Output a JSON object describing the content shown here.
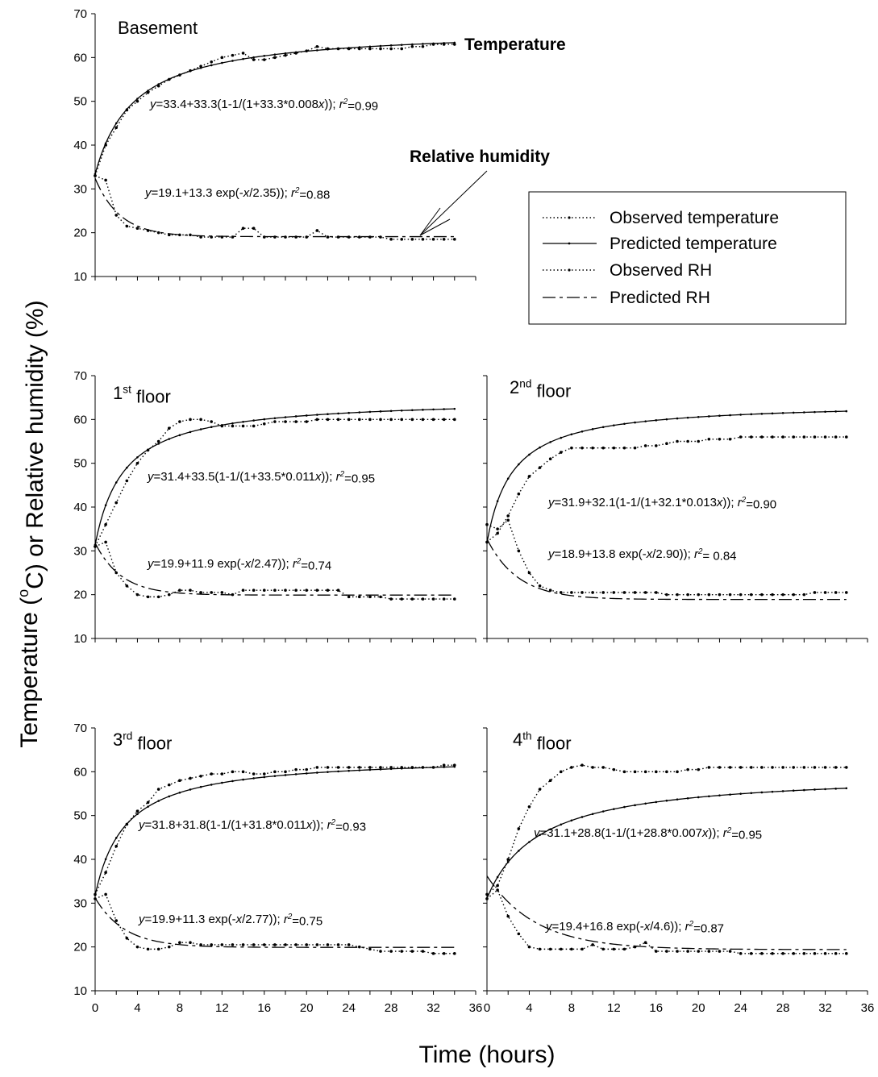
{
  "figure": {
    "ylabel": "Temperature (oC) or Relative humidity (%)",
    "xlabel": "Time (hours)",
    "legend": {
      "placement": "right of Basement panel",
      "items": [
        "Observed temperature",
        "Predicted temperature",
        "Observed RH",
        "Predicted RH"
      ]
    }
  },
  "chart_data": [
    {
      "type": "line",
      "panel": "Basement",
      "title": "Basement",
      "xlim": [
        0,
        36
      ],
      "ylim": [
        10,
        70
      ],
      "yticks": [
        10,
        20,
        30,
        40,
        50,
        60,
        70
      ],
      "xticks": [],
      "labels": {
        "temperature": "Temperature",
        "rh": "Relative humidity"
      },
      "equations": {
        "temperature": "y=33.4+33.3(1-1/(1+33.3*0.008x)); r2=0.99",
        "rh": "y=19.1+13.3 exp(-x/2.35)); r2=0.88"
      },
      "model": {
        "t_a": 33.4,
        "t_b": 33.3,
        "t_k": 0.008,
        "rh_a": 19.1,
        "rh_b": 13.3,
        "rh_tau": 2.35
      },
      "series": [
        {
          "name": "Observed temperature",
          "x": [
            0,
            1,
            2,
            3,
            4,
            5,
            6,
            7,
            8,
            9,
            10,
            11,
            12,
            13,
            14,
            15,
            16,
            17,
            18,
            19,
            20,
            21,
            22,
            23,
            24,
            25,
            26,
            27,
            28,
            29,
            30,
            31,
            32,
            33,
            34
          ],
          "values": [
            33,
            40,
            44,
            48,
            50,
            52,
            53.5,
            55,
            56,
            57,
            58,
            59,
            60,
            60.5,
            61,
            59.5,
            59.5,
            60,
            60.5,
            61,
            61.5,
            62.5,
            62,
            62,
            62,
            62,
            62,
            62,
            62,
            62,
            62.5,
            62.5,
            63,
            63,
            63
          ]
        },
        {
          "name": "Observed RH",
          "x": [
            0,
            1,
            2,
            3,
            4,
            5,
            6,
            7,
            8,
            9,
            10,
            11,
            12,
            13,
            14,
            15,
            16,
            17,
            18,
            19,
            20,
            21,
            22,
            23,
            24,
            25,
            26,
            27,
            28,
            29,
            30,
            31,
            32,
            33,
            34
          ],
          "values": [
            33,
            32,
            24,
            21.5,
            21,
            20.5,
            20,
            19.5,
            19.5,
            19.5,
            19,
            19,
            19,
            19,
            21,
            21,
            19,
            19,
            19,
            19,
            19,
            20.5,
            19,
            19,
            19,
            19,
            19,
            19,
            18.5,
            18.5,
            18.5,
            18.5,
            18.5,
            18.5,
            18.5
          ]
        }
      ]
    },
    {
      "type": "line",
      "panel": "1st floor",
      "title": "1st floor",
      "xlim": [
        0,
        36
      ],
      "ylim": [
        10,
        70
      ],
      "yticks": [
        10,
        20,
        30,
        40,
        50,
        60,
        70
      ],
      "xticks": [],
      "equations": {
        "temperature": "y=31.4+33.5(1-1/(1+33.5*0.011x)); r2=0.95",
        "rh": "y=19.9+11.9 exp(-x/2.47)); r2=0.74"
      },
      "model": {
        "t_a": 31.4,
        "t_b": 33.5,
        "t_k": 0.011,
        "rh_a": 19.9,
        "rh_b": 11.9,
        "rh_tau": 2.47
      },
      "series": [
        {
          "name": "Observed temperature",
          "x": [
            0,
            1,
            2,
            3,
            4,
            5,
            6,
            7,
            8,
            9,
            10,
            11,
            12,
            13,
            14,
            15,
            16,
            17,
            18,
            19,
            20,
            21,
            22,
            23,
            24,
            25,
            26,
            27,
            28,
            29,
            30,
            31,
            32,
            33,
            34
          ],
          "values": [
            31,
            36,
            41,
            46,
            50,
            53,
            55,
            58,
            59.5,
            60,
            60,
            59.5,
            58.5,
            58.5,
            58.5,
            58.5,
            59,
            59.5,
            59.5,
            59.5,
            59.5,
            60,
            60,
            60,
            60,
            60,
            60,
            60,
            60,
            60,
            60,
            60,
            60,
            60,
            60
          ]
        },
        {
          "name": "Observed RH",
          "x": [
            0,
            1,
            2,
            3,
            4,
            5,
            6,
            7,
            8,
            9,
            10,
            11,
            12,
            13,
            14,
            15,
            16,
            17,
            18,
            19,
            20,
            21,
            22,
            23,
            24,
            25,
            26,
            27,
            28,
            29,
            30,
            31,
            32,
            33,
            34
          ],
          "values": [
            31,
            32,
            25,
            22,
            20,
            19.5,
            19.5,
            20,
            21,
            21,
            20.5,
            20.5,
            20.5,
            20,
            21,
            21,
            21,
            21,
            21,
            21,
            21,
            21,
            21,
            21,
            19.5,
            19.5,
            19.5,
            19.5,
            19,
            19,
            19,
            19,
            19,
            19,
            19
          ]
        }
      ]
    },
    {
      "type": "line",
      "panel": "2nd floor",
      "title": "2nd floor",
      "xlim": [
        0,
        36
      ],
      "ylim": [
        10,
        70
      ],
      "yticks": [],
      "xticks": [],
      "equations": {
        "temperature": "y=31.9+32.1(1-1/(1+32.1*0.013x)); r2=0.90",
        "rh": "y=18.9+13.8 exp(-x/2.90)); r2= 0.84"
      },
      "model": {
        "t_a": 31.9,
        "t_b": 32.1,
        "t_k": 0.013,
        "rh_a": 18.9,
        "rh_b": 13.8,
        "rh_tau": 2.9
      },
      "series": [
        {
          "name": "Observed temperature",
          "x": [
            0,
            1,
            2,
            3,
            4,
            5,
            6,
            7,
            8,
            9,
            10,
            11,
            12,
            13,
            14,
            15,
            16,
            17,
            18,
            19,
            20,
            21,
            22,
            23,
            24,
            25,
            26,
            27,
            28,
            29,
            30,
            31,
            32,
            33,
            34
          ],
          "values": [
            32,
            34,
            38,
            43,
            47,
            49,
            51,
            52.5,
            53.5,
            53.5,
            53.5,
            53.5,
            53.5,
            53.5,
            53.5,
            54,
            54,
            54.5,
            55,
            55,
            55,
            55.5,
            55.5,
            55.5,
            56,
            56,
            56,
            56,
            56,
            56,
            56,
            56,
            56,
            56,
            56
          ]
        },
        {
          "name": "Observed RH",
          "x": [
            0,
            1,
            2,
            3,
            4,
            5,
            6,
            7,
            8,
            9,
            10,
            11,
            12,
            13,
            14,
            15,
            16,
            17,
            18,
            19,
            20,
            21,
            22,
            23,
            24,
            25,
            26,
            27,
            28,
            29,
            30,
            31,
            32,
            33,
            34
          ],
          "values": [
            36,
            35,
            37,
            30,
            25,
            22,
            21,
            20.5,
            20.5,
            20.5,
            20.5,
            20.5,
            20.5,
            20.5,
            20.5,
            20.5,
            20.5,
            20,
            20,
            20,
            20,
            20,
            20,
            20,
            20,
            20,
            20,
            20,
            20,
            20,
            20,
            20.5,
            20.5,
            20.5,
            20.5
          ]
        }
      ]
    },
    {
      "type": "line",
      "panel": "3rd floor",
      "title": "3rd floor",
      "xlim": [
        0,
        36
      ],
      "ylim": [
        10,
        70
      ],
      "yticks": [
        10,
        20,
        30,
        40,
        50,
        60,
        70
      ],
      "xticks": [
        0,
        4,
        8,
        12,
        16,
        20,
        24,
        28,
        32,
        36
      ],
      "equations": {
        "temperature": "y=31.8+31.8(1-1/(1+31.8*0.011x)); r2=0.93",
        "rh": "y=19.9+11.3 exp(-x/2.77)); r2=0.75"
      },
      "model": {
        "t_a": 31.8,
        "t_b": 31.8,
        "t_k": 0.011,
        "rh_a": 19.9,
        "rh_b": 11.3,
        "rh_tau": 2.77
      },
      "series": [
        {
          "name": "Observed temperature",
          "x": [
            0,
            1,
            2,
            3,
            4,
            5,
            6,
            7,
            8,
            9,
            10,
            11,
            12,
            13,
            14,
            15,
            16,
            17,
            18,
            19,
            20,
            21,
            22,
            23,
            24,
            25,
            26,
            27,
            28,
            29,
            30,
            31,
            32,
            33,
            34
          ],
          "values": [
            32,
            37,
            43,
            48,
            51,
            53,
            56,
            57,
            58,
            58.5,
            59,
            59.5,
            59.5,
            60,
            60,
            59.5,
            59.5,
            60,
            60,
            60.5,
            60.5,
            61,
            61,
            61,
            61,
            61,
            61,
            61,
            61,
            61,
            61,
            61,
            61,
            61.5,
            61.5
          ]
        },
        {
          "name": "Observed RH",
          "x": [
            0,
            1,
            2,
            3,
            4,
            5,
            6,
            7,
            8,
            9,
            10,
            11,
            12,
            13,
            14,
            15,
            16,
            17,
            18,
            19,
            20,
            21,
            22,
            23,
            24,
            25,
            26,
            27,
            28,
            29,
            30,
            31,
            32,
            33,
            34
          ],
          "values": [
            31,
            32,
            26,
            22,
            20,
            19.5,
            19.5,
            20,
            21,
            21,
            20.5,
            20.5,
            20.5,
            20.5,
            20.5,
            20.5,
            20.5,
            20.5,
            20.5,
            20.5,
            20.5,
            20.5,
            20.5,
            20.5,
            20.5,
            20,
            19.5,
            19,
            19,
            19,
            19,
            19,
            18.5,
            18.5,
            18.5
          ]
        }
      ]
    },
    {
      "type": "line",
      "panel": "4th floor",
      "title": "4th floor",
      "xlim": [
        0,
        36
      ],
      "ylim": [
        10,
        70
      ],
      "yticks": [],
      "xticks": [
        0,
        4,
        8,
        12,
        16,
        20,
        24,
        28,
        32,
        36
      ],
      "equations": {
        "temperature": "y=31.1+28.8(1-1/(1+28.8*0.007x)); r2=0.95",
        "rh": "y=19.4+16.8 exp(-x/4.6)); r2=0.87"
      },
      "model": {
        "t_a": 31.1,
        "t_b": 28.8,
        "t_k": 0.007,
        "rh_a": 19.4,
        "rh_b": 16.8,
        "rh_tau": 4.6
      },
      "series": [
        {
          "name": "Observed temperature",
          "x": [
            0,
            1,
            2,
            3,
            4,
            5,
            6,
            7,
            8,
            9,
            10,
            11,
            12,
            13,
            14,
            15,
            16,
            17,
            18,
            19,
            20,
            21,
            22,
            23,
            24,
            25,
            26,
            27,
            28,
            29,
            30,
            31,
            32,
            33,
            34
          ],
          "values": [
            32,
            34,
            40,
            47,
            52,
            56,
            58,
            60,
            61,
            61.5,
            61,
            61,
            60.5,
            60,
            60,
            60,
            60,
            60,
            60,
            60.5,
            60.5,
            61,
            61,
            61,
            61,
            61,
            61,
            61,
            61,
            61,
            61,
            61,
            61,
            61,
            61
          ]
        },
        {
          "name": "Observed RH",
          "x": [
            0,
            1,
            2,
            3,
            4,
            5,
            6,
            7,
            8,
            9,
            10,
            11,
            12,
            13,
            14,
            15,
            16,
            17,
            18,
            19,
            20,
            21,
            22,
            23,
            24,
            25,
            26,
            27,
            28,
            29,
            30,
            31,
            32,
            33,
            34
          ],
          "values": [
            31,
            33,
            27,
            23,
            20,
            19.5,
            19.5,
            19.5,
            19.5,
            19.5,
            20.5,
            19.5,
            19.5,
            19.5,
            20,
            21,
            19,
            19,
            19,
            19,
            19,
            19,
            19,
            19,
            18.5,
            18.5,
            18.5,
            18.5,
            18.5,
            18.5,
            18.5,
            18.5,
            18.5,
            18.5,
            18.5
          ]
        }
      ]
    }
  ]
}
